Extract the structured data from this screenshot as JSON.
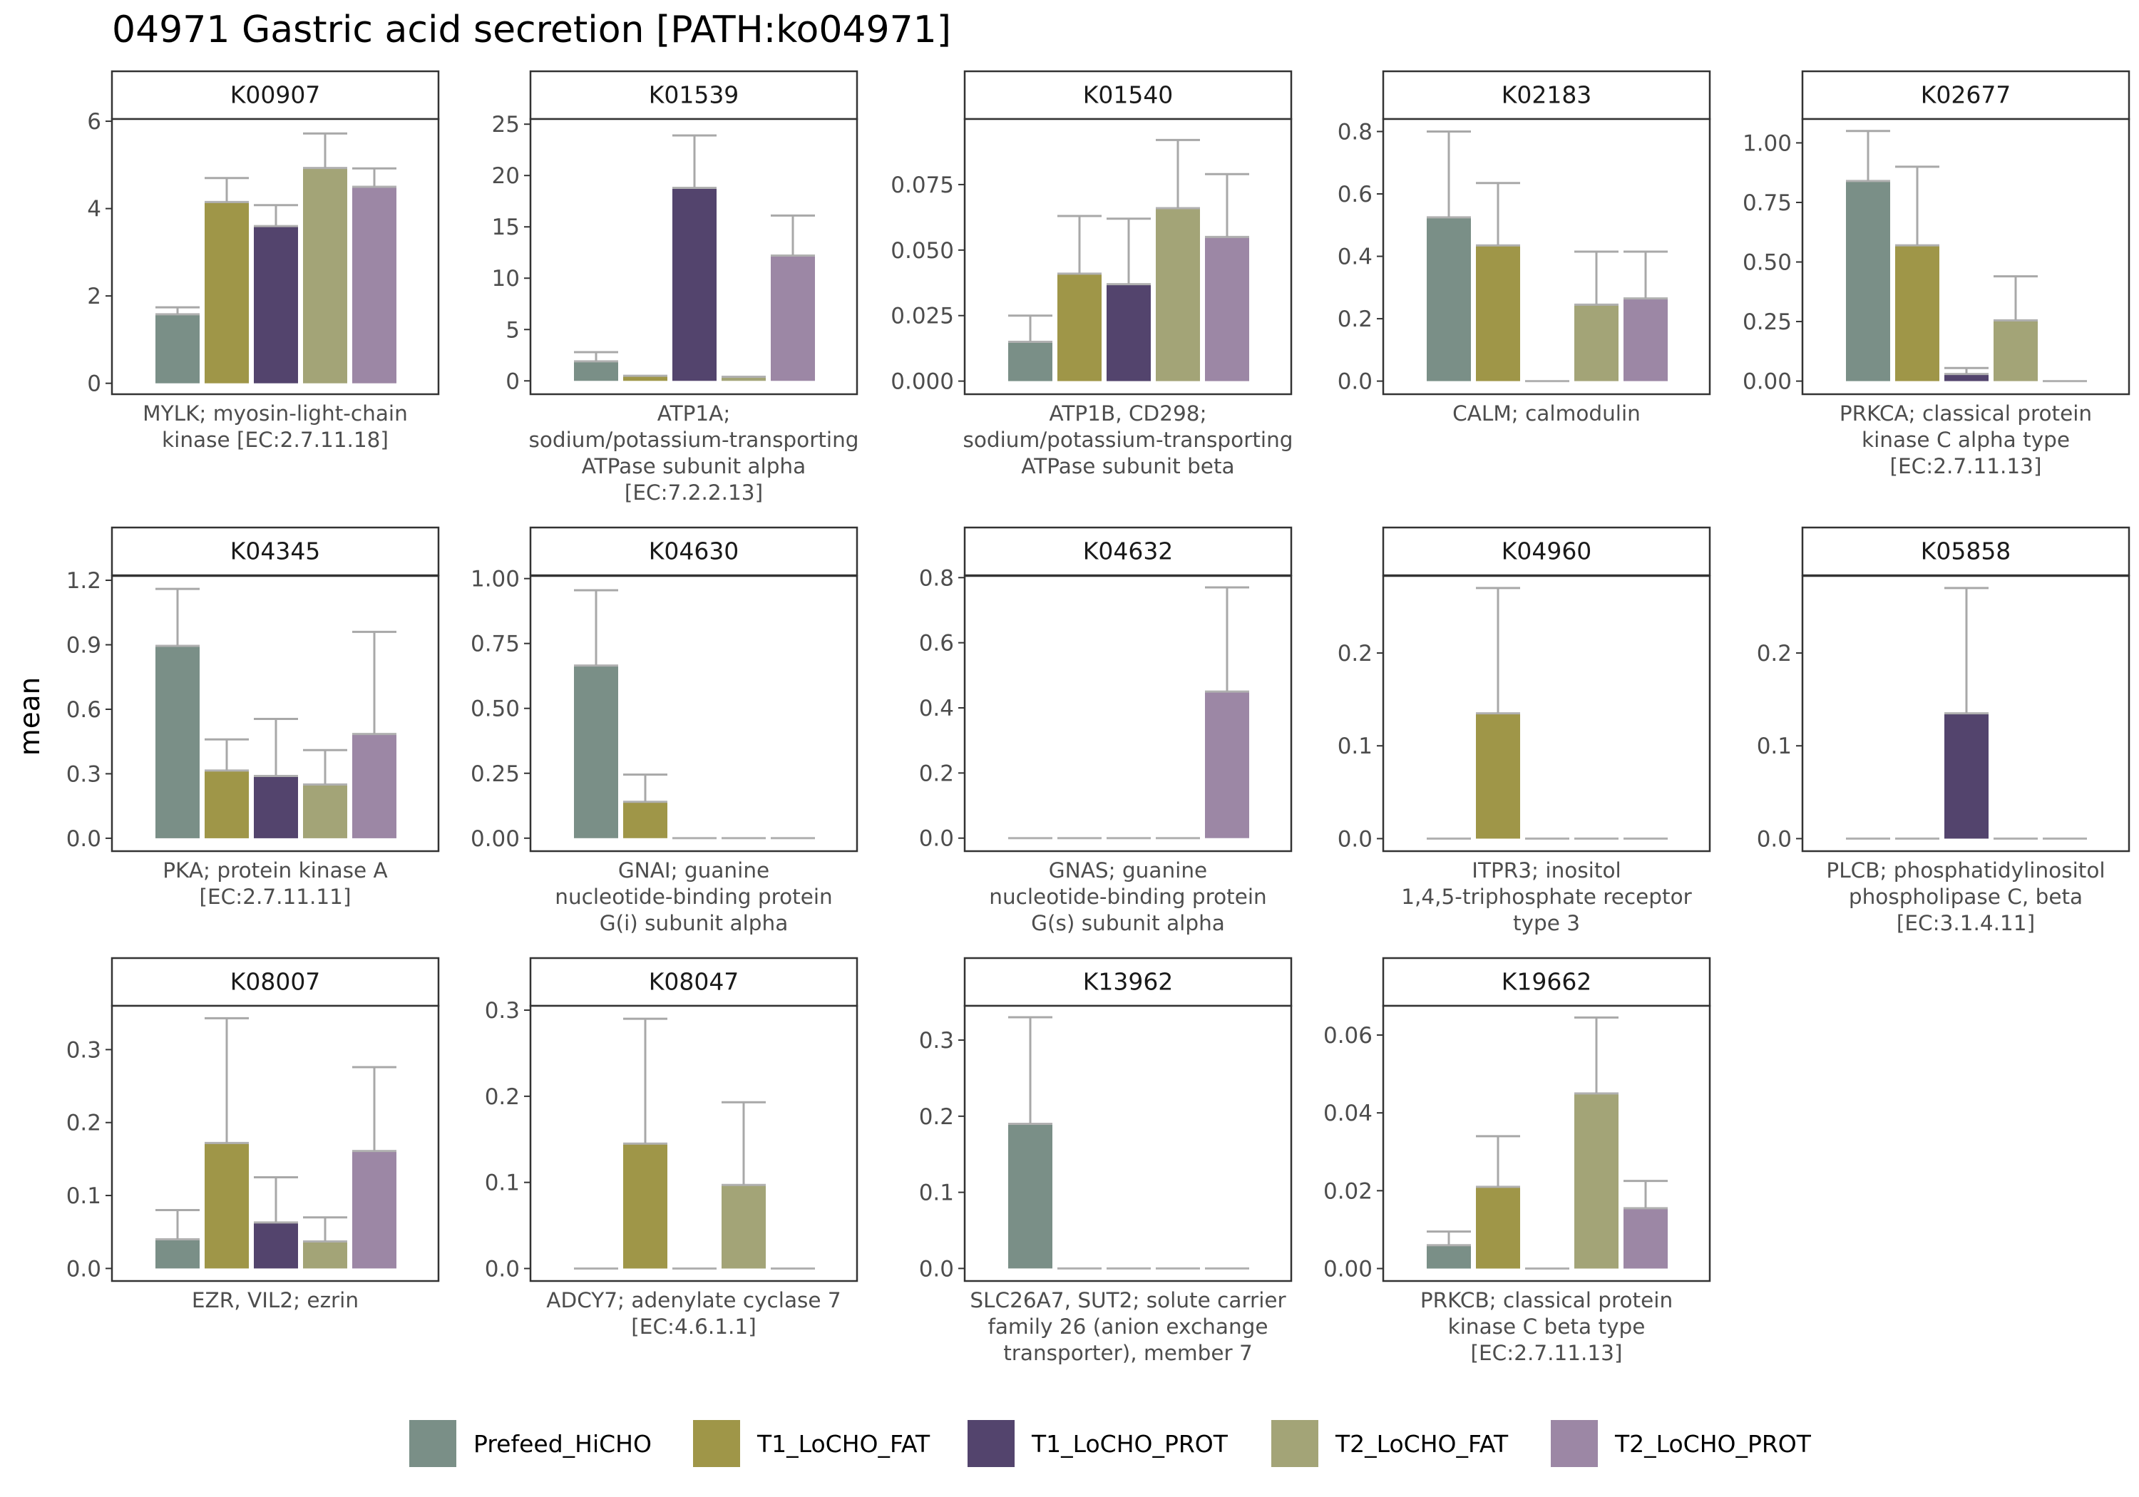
{
  "chart_data": {
    "type": "bar",
    "title": "04971 Gastric acid secretion [PATH:ko04971]",
    "ylabel": "mean",
    "error_bars": true,
    "grid": false,
    "legend_position": "bottom",
    "legend": [
      {
        "name": "Prefeed_HiCHO",
        "color": "#7a8f87"
      },
      {
        "name": "T1_LoCHO_FAT",
        "color": "#9f9648"
      },
      {
        "name": "T1_LoCHO_PROT",
        "color": "#53446d"
      },
      {
        "name": "T2_LoCHO_FAT",
        "color": "#a3a477"
      },
      {
        "name": "T2_LoCHO_PROT",
        "color": "#9c87a5"
      }
    ],
    "panels": [
      {
        "id": "K00907",
        "label": [
          "MYLK; myosin-light-chain",
          "kinase [EC:2.7.11.18]"
        ],
        "ylim": [
          -0.25,
          6.05
        ],
        "ticks": [
          0,
          2,
          4,
          6
        ],
        "tick_labels": [
          "0",
          "2",
          "4",
          "6"
        ],
        "values": [
          1.58,
          4.15,
          3.6,
          4.93,
          4.5
        ],
        "errors": [
          1.74,
          4.7,
          4.08,
          5.72,
          4.92
        ]
      },
      {
        "id": "K01539",
        "label": [
          "ATP1A;",
          "sodium/potassium-transporting",
          "ATPase subunit alpha",
          "[EC:7.2.2.13]"
        ],
        "ylim": [
          -1.3,
          25.5
        ],
        "ticks": [
          0,
          5,
          10,
          15,
          20,
          25
        ],
        "tick_labels": [
          "0",
          "5",
          "10",
          "15",
          "20",
          "25"
        ],
        "values": [
          1.9,
          0.5,
          18.8,
          0.4,
          12.2
        ],
        "errors": [
          2.8,
          0.5,
          23.9,
          0.4,
          16.1
        ]
      },
      {
        "id": "K01540",
        "label": [
          "ATP1B, CD298;",
          "sodium/potassium-transporting",
          "ATPase subunit beta"
        ],
        "ylim": [
          -0.005,
          0.1
        ],
        "ticks": [
          0,
          0.025,
          0.05,
          0.075
        ],
        "tick_labels": [
          "0.000",
          "0.025",
          "0.050",
          "0.075"
        ],
        "values": [
          0.015,
          0.041,
          0.037,
          0.066,
          0.055
        ],
        "errors": [
          0.025,
          0.063,
          0.062,
          0.092,
          0.079
        ]
      },
      {
        "id": "K02183",
        "label": [
          "CALM; calmodulin"
        ],
        "ylim": [
          -0.042,
          0.84
        ],
        "ticks": [
          0,
          0.2,
          0.4,
          0.6,
          0.8
        ],
        "tick_labels": [
          "0.0",
          "0.2",
          "0.4",
          "0.6",
          "0.8"
        ],
        "values": [
          0.525,
          0.435,
          0.0,
          0.245,
          0.265
        ],
        "errors": [
          0.8,
          0.635,
          0.0,
          0.415,
          0.415
        ]
      },
      {
        "id": "K02677",
        "label": [
          "PRKCA; classical protein",
          "kinase C alpha type",
          "[EC:2.7.11.13]"
        ],
        "ylim": [
          -0.055,
          1.1
        ],
        "ticks": [
          0,
          0.25,
          0.5,
          0.75,
          1.0
        ],
        "tick_labels": [
          "0.00",
          "0.25",
          "0.50",
          "0.75",
          "1.00"
        ],
        "values": [
          0.84,
          0.57,
          0.03,
          0.255,
          0.0
        ],
        "errors": [
          1.05,
          0.9,
          0.055,
          0.44,
          0.0
        ]
      },
      {
        "id": "K04345",
        "label": [
          "PKA; protein kinase A",
          "[EC:2.7.11.11]"
        ],
        "ylim": [
          -0.06,
          1.22
        ],
        "ticks": [
          0,
          0.3,
          0.6,
          0.9,
          1.2
        ],
        "tick_labels": [
          "0.0",
          "0.3",
          "0.6",
          "0.9",
          "1.2"
        ],
        "values": [
          0.895,
          0.315,
          0.29,
          0.25,
          0.485
        ],
        "errors": [
          1.16,
          0.46,
          0.555,
          0.41,
          0.96
        ]
      },
      {
        "id": "K04630",
        "label": [
          "GNAI; guanine",
          "nucleotide-binding protein",
          "G(i) subunit alpha"
        ],
        "ylim": [
          -0.05,
          1.01
        ],
        "ticks": [
          0,
          0.25,
          0.5,
          0.75,
          1.0
        ],
        "tick_labels": [
          "0.00",
          "0.25",
          "0.50",
          "0.75",
          "1.00"
        ],
        "values": [
          0.665,
          0.14,
          0.0,
          0.0,
          0.0
        ],
        "errors": [
          0.955,
          0.245,
          0.0,
          0.0,
          0.0
        ]
      },
      {
        "id": "K04632",
        "label": [
          "GNAS; guanine",
          "nucleotide-binding protein",
          "G(s) subunit alpha"
        ],
        "ylim": [
          -0.04,
          0.805
        ],
        "ticks": [
          0,
          0.2,
          0.4,
          0.6,
          0.8
        ],
        "tick_labels": [
          "0.0",
          "0.2",
          "0.4",
          "0.6",
          "0.8"
        ],
        "values": [
          0.0,
          0.0,
          0.0,
          0.0,
          0.45
        ],
        "errors": [
          0.0,
          0.0,
          0.0,
          0.0,
          0.77
        ]
      },
      {
        "id": "K04960",
        "label": [
          "ITPR3; inositol",
          "1,4,5-triphosphate receptor",
          "type 3"
        ],
        "ylim": [
          -0.0135,
          0.283
        ],
        "ticks": [
          0,
          0.1,
          0.2
        ],
        "tick_labels": [
          "0.0",
          "0.1",
          "0.2"
        ],
        "values": [
          0.0,
          0.135,
          0.0,
          0.0,
          0.0
        ],
        "errors": [
          0.0,
          0.27,
          0.0,
          0.0,
          0.0
        ]
      },
      {
        "id": "K05858",
        "label": [
          "PLCB; phosphatidylinositol",
          "phospholipase C, beta",
          "[EC:3.1.4.11]"
        ],
        "ylim": [
          -0.0135,
          0.283
        ],
        "ticks": [
          0,
          0.1,
          0.2
        ],
        "tick_labels": [
          "0.0",
          "0.1",
          "0.2"
        ],
        "values": [
          0.0,
          0.0,
          0.135,
          0.0,
          0.0
        ],
        "errors": [
          0.0,
          0.0,
          0.27,
          0.0,
          0.0
        ]
      },
      {
        "id": "K08007",
        "label": [
          "EZR, VIL2; ezrin"
        ],
        "ylim": [
          -0.0172,
          0.36
        ],
        "ticks": [
          0,
          0.1,
          0.2,
          0.3
        ],
        "tick_labels": [
          "0.0",
          "0.1",
          "0.2",
          "0.3"
        ],
        "values": [
          0.04,
          0.172,
          0.063,
          0.037,
          0.161
        ],
        "errors": [
          0.08,
          0.343,
          0.125,
          0.07,
          0.276
        ]
      },
      {
        "id": "K08047",
        "label": [
          "ADCY7; adenylate cyclase 7",
          "[EC:4.6.1.1]"
        ],
        "ylim": [
          -0.0145,
          0.305
        ],
        "ticks": [
          0,
          0.1,
          0.2,
          0.3
        ],
        "tick_labels": [
          "0.0",
          "0.1",
          "0.2",
          "0.3"
        ],
        "values": [
          0.0,
          0.145,
          0.0,
          0.097,
          0.0
        ],
        "errors": [
          0.0,
          0.29,
          0.0,
          0.193,
          0.0
        ]
      },
      {
        "id": "K13962",
        "label": [
          "SLC26A7, SUT2; solute carrier",
          "family 26 (anion exchange",
          "transporter), member 7"
        ],
        "ylim": [
          -0.0165,
          0.345
        ],
        "ticks": [
          0,
          0.1,
          0.2,
          0.3
        ],
        "tick_labels": [
          "0.0",
          "0.1",
          "0.2",
          "0.3"
        ],
        "values": [
          0.19,
          0.0,
          0.0,
          0.0,
          0.0
        ],
        "errors": [
          0.33,
          0.0,
          0.0,
          0.0,
          0.0
        ]
      },
      {
        "id": "K19662",
        "label": [
          "PRKCB; classical protein",
          "kinase C beta type",
          "[EC:2.7.11.13]"
        ],
        "ylim": [
          -0.0032,
          0.0675
        ],
        "ticks": [
          0,
          0.02,
          0.04,
          0.06
        ],
        "tick_labels": [
          "0.00",
          "0.02",
          "0.04",
          "0.06"
        ],
        "values": [
          0.006,
          0.021,
          0.0,
          0.045,
          0.0155
        ],
        "errors": [
          0.0095,
          0.034,
          0.0,
          0.0645,
          0.0225
        ]
      }
    ]
  }
}
